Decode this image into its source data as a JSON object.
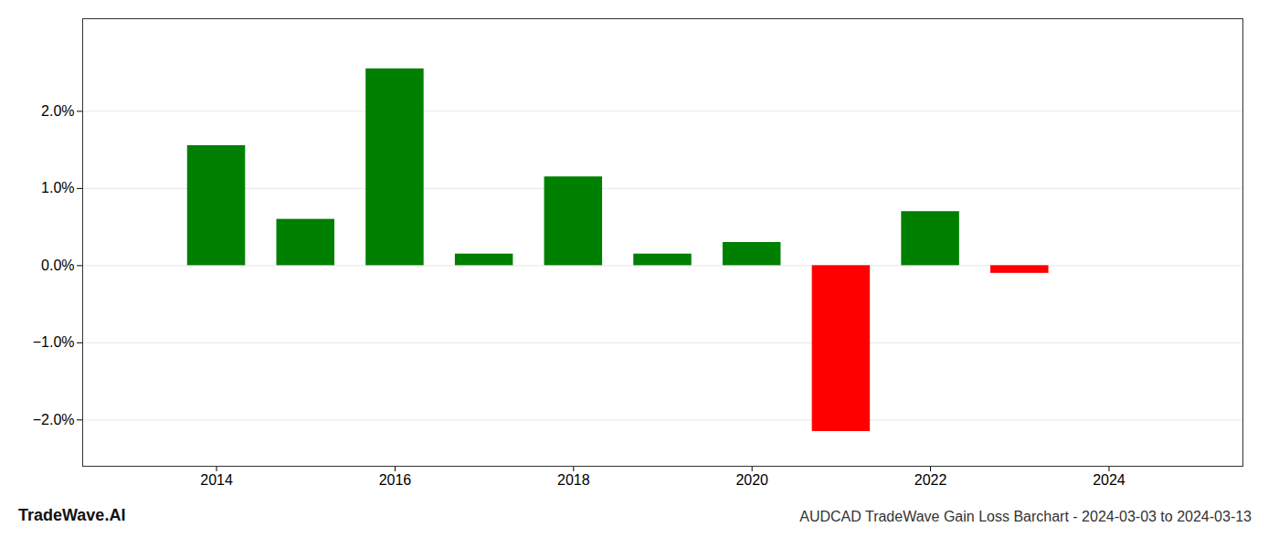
{
  "chart_data": {
    "type": "bar",
    "title": "AUDCAD TradeWave Gain Loss Barchart - 2024-03-03 to 2024-03-13",
    "annotations": [
      "TradeWave.AI"
    ],
    "x": [
      2014,
      2015,
      2016,
      2017,
      2018,
      2019,
      2020,
      2021,
      2022,
      2023
    ],
    "values": [
      0.01555,
      0.006,
      0.0255,
      0.0015,
      0.0115,
      0.0015,
      0.003,
      -0.0215,
      0.007,
      -0.001
    ],
    "colors": [
      "#008000",
      "#008000",
      "#008000",
      "#008000",
      "#008000",
      "#008000",
      "#008000",
      "#ff0000",
      "#008000",
      "#ff0000"
    ],
    "xlim": [
      2012.5,
      2025.5
    ],
    "xticks": [
      2014,
      2016,
      2018,
      2020,
      2022,
      2024
    ],
    "ylim": [
      -0.026,
      0.032
    ],
    "yticks": [
      {
        "value": -0.02,
        "label": "−2.0%"
      },
      {
        "value": -0.01,
        "label": "−1.0%"
      },
      {
        "value": 0.0,
        "label": "0.0%"
      },
      {
        "value": 0.01,
        "label": "1.0%"
      },
      {
        "value": 0.02,
        "label": "2.0%"
      }
    ],
    "grid": true
  }
}
